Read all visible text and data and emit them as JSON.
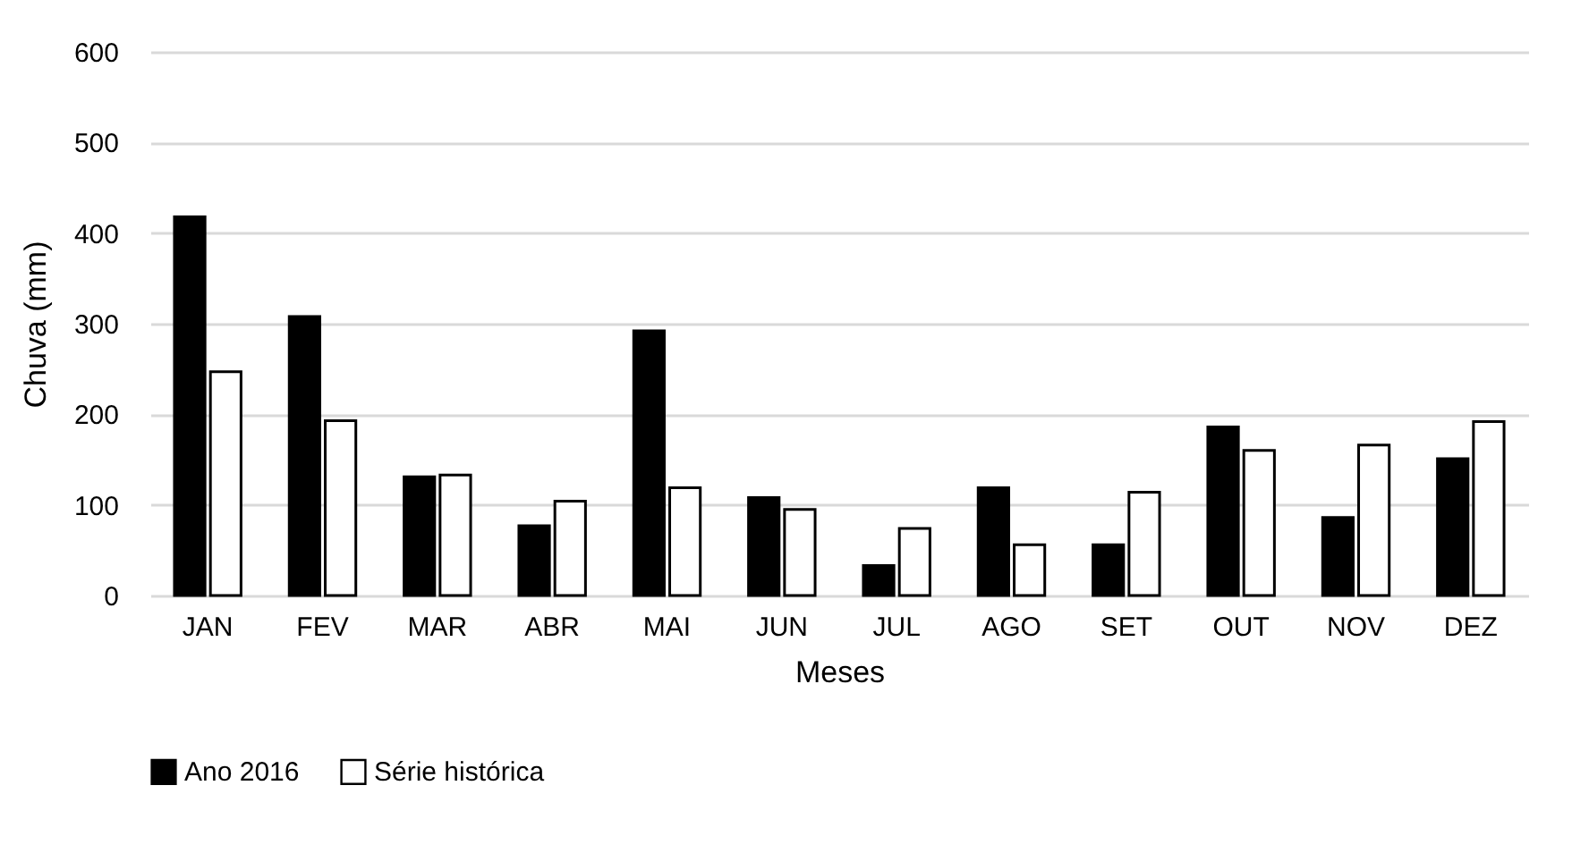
{
  "chart_data": {
    "type": "bar",
    "xlabel": "Meses",
    "ylabel": "Chuva (mm)",
    "categories": [
      "JAN",
      "FEV",
      "MAR",
      "ABR",
      "MAI",
      "JUN",
      "JUL",
      "AGO",
      "SET",
      "OUT",
      "NOV",
      "DEZ"
    ],
    "series": [
      {
        "name": "Ano 2016",
        "color": "#000000",
        "values": [
          418,
          308,
          131,
          77,
          292,
          108,
          33,
          119,
          56,
          186,
          86,
          151
        ]
      },
      {
        "name": "Série histórica",
        "color": "#ffffff",
        "values": [
          247,
          193,
          133,
          104,
          119,
          95,
          74,
          56,
          114,
          160,
          166,
          192
        ]
      }
    ],
    "ylim": [
      0,
      600
    ],
    "yticks": [
      0,
      100,
      200,
      300,
      400,
      500,
      600
    ],
    "grid": "y",
    "legend": "bottom"
  }
}
